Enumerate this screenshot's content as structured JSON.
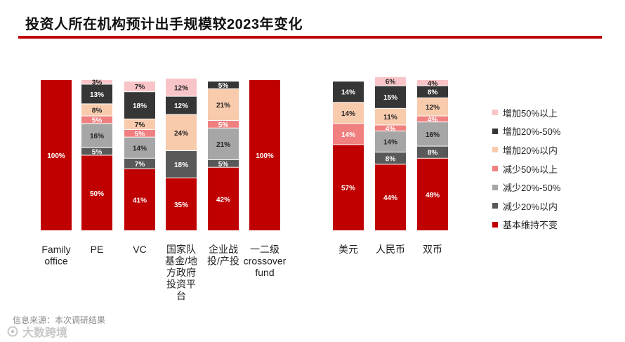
{
  "title": "投资人所在机构预计出手规模较2023年变化",
  "source": "信息来源：本次调研结果",
  "watermark": "大数跨境",
  "chart_data": {
    "type": "bar",
    "stacked": true,
    "normalized": true,
    "title": "投资人所在机构预计出手规模较2023年变化",
    "ylim": [
      0,
      100
    ],
    "categories": [
      "Family office",
      "PE",
      "VC",
      "国家队基金/地方政府投资平台",
      "企业战投/产投",
      "一二级crossover fund",
      "美元",
      "人民币",
      "双币"
    ],
    "category_labels": [
      [
        "Family",
        "office"
      ],
      [
        "PE"
      ],
      [
        "VC"
      ],
      [
        "国家队",
        "基金/地",
        "方政府",
        "投资平",
        "台"
      ],
      [
        "企业战",
        "投/产投"
      ],
      [
        "一二级",
        "crossover",
        "fund"
      ],
      [
        "美元"
      ],
      [
        "人民币"
      ],
      [
        "双币"
      ]
    ],
    "groups": [
      {
        "name": "by_institution",
        "categories": [
          0,
          1,
          2,
          3,
          4,
          5
        ]
      },
      {
        "name": "by_currency",
        "categories": [
          6,
          7,
          8
        ]
      }
    ],
    "legend_position": "right",
    "series": [
      {
        "name": "基本维持不变",
        "color": "#c00000",
        "label_color": "#ffffff",
        "values": [
          100,
          50,
          41,
          35,
          42,
          100,
          57,
          44,
          48
        ]
      },
      {
        "name": "减少20%以内",
        "color": "#595959",
        "label_color": "#ffffff",
        "values": [
          0,
          5,
          7,
          18,
          5,
          0,
          0,
          8,
          8
        ]
      },
      {
        "name": "减少20%-50%",
        "color": "#a6a6a6",
        "label_color": "#222222",
        "values": [
          0,
          16,
          14,
          0,
          21,
          0,
          0,
          14,
          16
        ]
      },
      {
        "name": "减少50%以上",
        "color": "#f08080",
        "label_color": "#ffffff",
        "values": [
          0,
          5,
          5,
          0,
          5,
          0,
          14,
          4,
          4
        ]
      },
      {
        "name": "增加20%以内",
        "color": "#f8cbad",
        "label_color": "#222222",
        "values": [
          0,
          8,
          7,
          24,
          21,
          0,
          14,
          11,
          12
        ]
      },
      {
        "name": "增加20%-50%",
        "color": "#363636",
        "label_color": "#ffffff",
        "values": [
          0,
          13,
          18,
          12,
          5,
          0,
          14,
          15,
          8
        ]
      },
      {
        "name": "增加50%以上",
        "color": "#f9c4c8",
        "label_color": "#222222",
        "values": [
          0,
          3,
          7,
          12,
          0,
          0,
          0,
          6,
          4
        ]
      }
    ],
    "data_labels": [
      [
        "100%",
        "",
        "",
        "",
        "",
        "",
        ""
      ],
      [
        "50%",
        "5%",
        "16%",
        "5%",
        "8%",
        "13%",
        "3%"
      ],
      [
        "41%",
        "7%",
        "14%",
        "5%",
        "7%",
        "18%",
        "7%"
      ],
      [
        "35%",
        "18%",
        "",
        "",
        "24%",
        "12%",
        "12%"
      ],
      [
        "42%",
        "5%",
        "21%",
        "5%",
        "21%",
        "5%",
        ""
      ],
      [
        "100%",
        "",
        "",
        "",
        "",
        "",
        ""
      ],
      [
        "57%",
        "",
        "",
        "14%",
        "14%",
        "14%",
        ""
      ],
      [
        "44%",
        "8%",
        "14%",
        "4%",
        "11%",
        "15%",
        "6%"
      ],
      [
        "48%",
        "8%",
        "16%",
        "4%",
        "12%",
        "8%",
        "4%"
      ]
    ],
    "legend_order": [
      "增加50%以上",
      "增加20%-50%",
      "增加20%以内",
      "减少50%以上",
      "减少20%-50%",
      "减少20%以内",
      "基本维持不变"
    ]
  }
}
